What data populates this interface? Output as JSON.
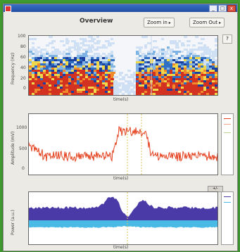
{
  "window": {
    "title": "",
    "controls": {
      "minimize": "_",
      "maximize": "□",
      "close": "x"
    }
  },
  "toolbar": {
    "page_title": "Overview",
    "zoom_in_label": "Zoom in",
    "zoom_out_label": "Zoom Out",
    "help_label": "?"
  },
  "panels": {
    "spectrogram": {
      "ylabel": "Frequency (Hz)",
      "xlabel": "time(s)",
      "yticks": [
        "100",
        "80",
        "60",
        "40",
        "20",
        "0"
      ]
    },
    "signal": {
      "ylabel": "Amplitude (mV)",
      "xlabel": "time(s)",
      "yticks": [
        "1000",
        "500",
        "0"
      ]
    },
    "envelope": {
      "ylabel": "Power (a.u.)",
      "xlabel": "time(s)",
      "scroll_tab": "+/-"
    }
  },
  "colors": {
    "signal": "#e4421f",
    "envelope_fill": "#4a3aa8",
    "envelope_lower": "#49b9e6",
    "marker": "#d8c85a"
  }
}
